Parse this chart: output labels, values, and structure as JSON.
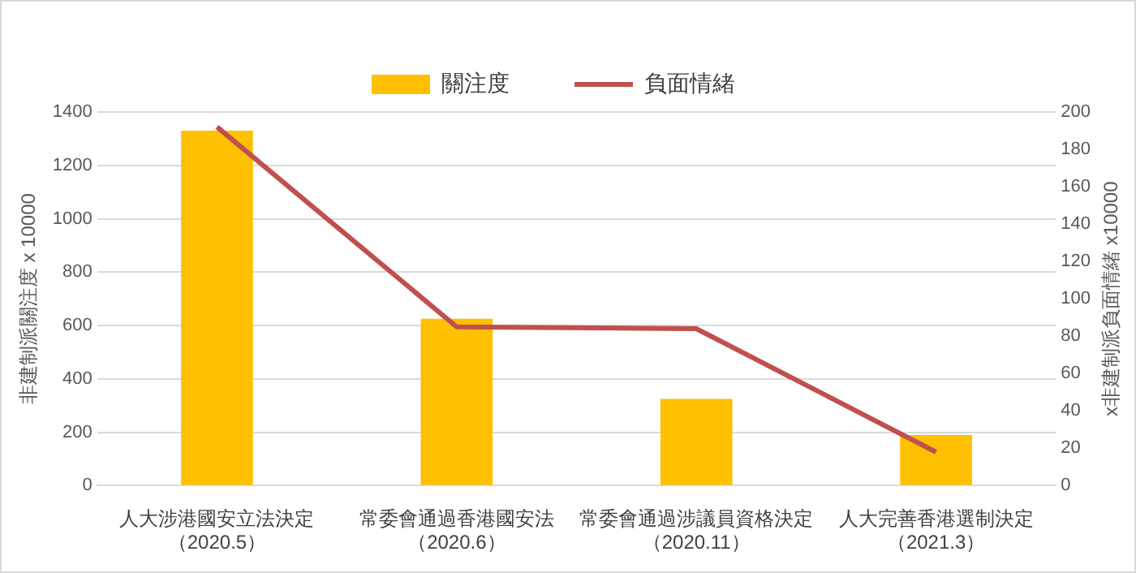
{
  "chart_data": {
    "type": "bar",
    "ylabel": "非建制派關注度 x 10000",
    "y2label": "x非建制派負面情緒 x10000",
    "categories": [
      "人大涉港國安立法決定（2020.5）",
      "常委會通過香港國安法（2020.6）",
      "常委會通過涉議員資格決定（2020.11）",
      "人大完善香港選制決定（2021.3）"
    ],
    "series": [
      {
        "name": "關注度",
        "color": "#ffc000",
        "values": [
          1330,
          625,
          325,
          190
        ]
      },
      {
        "name": "負面情緒",
        "type": "line",
        "axis": "y2",
        "color": "#c0504d",
        "values": [
          192,
          85,
          84,
          18
        ]
      }
    ],
    "ylim": [
      0,
      1400
    ],
    "yticks": [
      0,
      200,
      400,
      600,
      800,
      1000,
      1200,
      1400
    ],
    "y2lim": [
      0,
      200
    ],
    "y2ticks": [
      0,
      20,
      40,
      60,
      80,
      100,
      120,
      140,
      160,
      180,
      200
    ],
    "grid": "y",
    "legend": "top",
    "marker": "none"
  }
}
